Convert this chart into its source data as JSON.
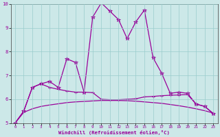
{
  "xlabel": "Windchill (Refroidissement éolien,°C)",
  "background_color": "#cce8e8",
  "grid_color": "#99cccc",
  "line_color": "#990099",
  "xlim": [
    -0.5,
    23.5
  ],
  "ylim": [
    5,
    10
  ],
  "yticks": [
    5,
    6,
    7,
    8,
    9,
    10
  ],
  "xticks": [
    0,
    1,
    2,
    3,
    4,
    5,
    6,
    7,
    8,
    9,
    10,
    11,
    12,
    13,
    14,
    15,
    16,
    17,
    18,
    19,
    20,
    21,
    22,
    23
  ],
  "line1_x": [
    0,
    1,
    2,
    3,
    4,
    5,
    6,
    7,
    8,
    9,
    10,
    11,
    12,
    13,
    14,
    15,
    16,
    17,
    18,
    19,
    20,
    21,
    22,
    23
  ],
  "line1_y": [
    5.0,
    5.5,
    6.5,
    6.65,
    6.75,
    6.5,
    7.7,
    7.55,
    6.3,
    9.45,
    10.05,
    9.7,
    9.35,
    8.55,
    9.25,
    9.75,
    7.75,
    7.1,
    6.25,
    6.3,
    6.25,
    5.8,
    5.7,
    5.4
  ],
  "line2_x": [
    0,
    1,
    2,
    3,
    4,
    5,
    6,
    7,
    8,
    9,
    10,
    11,
    12,
    13,
    14,
    15,
    16,
    17,
    18,
    19,
    20,
    21,
    22,
    23
  ],
  "line2_y": [
    5.0,
    5.5,
    6.5,
    6.65,
    6.5,
    6.42,
    6.35,
    6.3,
    6.3,
    6.28,
    6.0,
    5.98,
    5.98,
    6.0,
    6.02,
    6.1,
    6.12,
    6.15,
    6.17,
    6.18,
    6.2,
    5.8,
    5.7,
    5.4
  ],
  "line3_x": [
    0,
    1,
    2,
    3,
    4,
    5,
    6,
    7,
    8,
    9,
    10,
    11,
    12,
    13,
    14,
    15,
    16,
    17,
    18,
    19,
    20,
    21,
    22,
    23
  ],
  "line3_y": [
    5.0,
    5.45,
    5.6,
    5.7,
    5.76,
    5.81,
    5.86,
    5.89,
    5.91,
    5.93,
    5.95,
    5.95,
    5.95,
    5.94,
    5.92,
    5.89,
    5.86,
    5.83,
    5.78,
    5.73,
    5.67,
    5.6,
    5.52,
    5.42
  ]
}
